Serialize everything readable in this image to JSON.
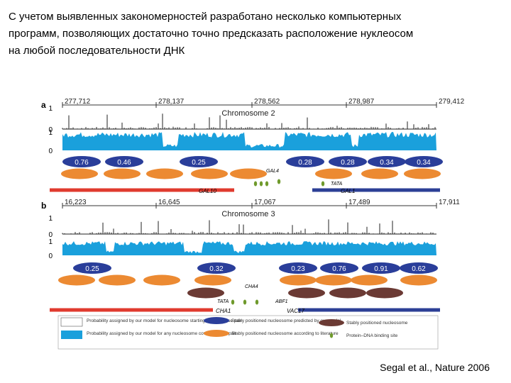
{
  "slide": {
    "lines": [
      "С учетом выявленных закономерностей разработано несколько компьютерных",
      "программ, позволяющих достаточно точно предсказать расположение нуклеосом",
      "на любой последовательности ДНК"
    ],
    "citation": "Segal et al., Nature 2006"
  },
  "figure": {
    "panels": [
      {
        "label": "a",
        "positions": [
          "277,712",
          "278,137",
          "278,562",
          "278,987",
          "279,412"
        ],
        "chromosome": "Chromosome 2",
        "track_labels": [
          "1",
          "0",
          "1",
          "0"
        ],
        "predicted": [
          "0.76",
          "0.46",
          "0.25",
          "0.28",
          "0.28",
          "0.34",
          "0.34"
        ],
        "genes": [
          "GAL10",
          "GAL1"
        ],
        "sites": [
          "GAL4",
          "TATA"
        ]
      },
      {
        "label": "b",
        "positions": [
          "16,223",
          "16,645",
          "17,067",
          "17,489",
          "17,911"
        ],
        "chromosome": "Chromosome 3",
        "track_labels": [
          "1",
          "0",
          "1",
          "0"
        ],
        "predicted": [
          "0.25",
          "0.32",
          "0.23",
          "0.76",
          "0.91",
          "0.62"
        ],
        "genes": [
          "CHA1",
          "VAC17"
        ],
        "sites": [
          "CHA4",
          "TATA",
          "ABF1"
        ]
      }
    ],
    "legend": [
      "Probability assigned by our model for nucleosome starting at each base pair",
      "Probability assigned by our model for any nucleosome covering base pair",
      "Stably positioned nucleosome predicted by our model",
      "Stably positioned nucleosome according to literature",
      "Stably positioned nucleosome",
      "Protein–DNA binding site"
    ]
  }
}
